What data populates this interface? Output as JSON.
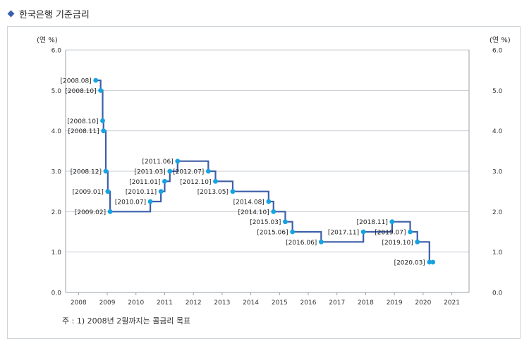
{
  "page": {
    "title": "한국은행 기준금리",
    "note": "주 : 1) 2008년 2월까지는 콜금리 목표"
  },
  "chart_data": {
    "type": "line",
    "step": "post",
    "yunit_left": "(연 %)",
    "yunit_right": "(연 %)",
    "ylim": [
      0,
      6
    ],
    "xlim": [
      2008,
      2021
    ],
    "yticks": [
      "0.0",
      "1.0",
      "2.0",
      "3.0",
      "4.0",
      "5.0",
      "6.0"
    ],
    "xticks": [
      "2008",
      "2009",
      "2010",
      "2011",
      "2012",
      "2013",
      "2014",
      "2015",
      "2016",
      "2017",
      "2018",
      "2019",
      "2020",
      "2021"
    ],
    "grid": true,
    "colors": {
      "line": "#3d5ea8",
      "marker": "#16a3e0"
    },
    "series": [
      {
        "points": [
          {
            "label": "[2008.08]",
            "x": 2008.6,
            "y": 5.25
          },
          {
            "label": "[2008.10]",
            "x": 2008.77,
            "y": 5.0
          },
          {
            "label": "[2008.10]",
            "x": 2008.84,
            "y": 4.25
          },
          {
            "label": "[2008.11]",
            "x": 2008.87,
            "y": 4.0
          },
          {
            "label": "[2008.12]",
            "x": 2008.95,
            "y": 3.0
          },
          {
            "label": "[2009.01]",
            "x": 2009.02,
            "y": 2.5
          },
          {
            "label": "[2009.02]",
            "x": 2009.1,
            "y": 2.0
          },
          {
            "label": "[2010.07]",
            "x": 2010.5,
            "y": 2.25
          },
          {
            "label": "[2010.11]",
            "x": 2010.87,
            "y": 2.5
          },
          {
            "label": "[2011.01]",
            "x": 2011.0,
            "y": 2.75
          },
          {
            "label": "[2011.03]",
            "x": 2011.18,
            "y": 3.0
          },
          {
            "label": "[2011.06]",
            "x": 2011.45,
            "y": 3.25
          },
          {
            "label": "[2012.07]",
            "x": 2012.52,
            "y": 3.0
          },
          {
            "label": "[2012.10]",
            "x": 2012.77,
            "y": 2.75
          },
          {
            "label": "[2013.05]",
            "x": 2013.37,
            "y": 2.5
          },
          {
            "label": "[2014.08]",
            "x": 2014.62,
            "y": 2.25
          },
          {
            "label": "[2014.10]",
            "x": 2014.79,
            "y": 2.0
          },
          {
            "label": "[2015.03]",
            "x": 2015.2,
            "y": 1.75
          },
          {
            "label": "[2015.06]",
            "x": 2015.45,
            "y": 1.5
          },
          {
            "label": "[2016.06]",
            "x": 2016.45,
            "y": 1.25
          },
          {
            "label": "[2017.11]",
            "x": 2017.92,
            "y": 1.5
          },
          {
            "label": "[2018.11]",
            "x": 2018.92,
            "y": 1.75
          },
          {
            "label": "[2019.07]",
            "x": 2019.55,
            "y": 1.5
          },
          {
            "label": "[2019.10]",
            "x": 2019.8,
            "y": 1.25
          },
          {
            "label": "[2020.03]",
            "x": 2020.22,
            "y": 0.75
          },
          {
            "label": "",
            "x": 2020.34,
            "y": 0.75
          }
        ]
      }
    ]
  }
}
